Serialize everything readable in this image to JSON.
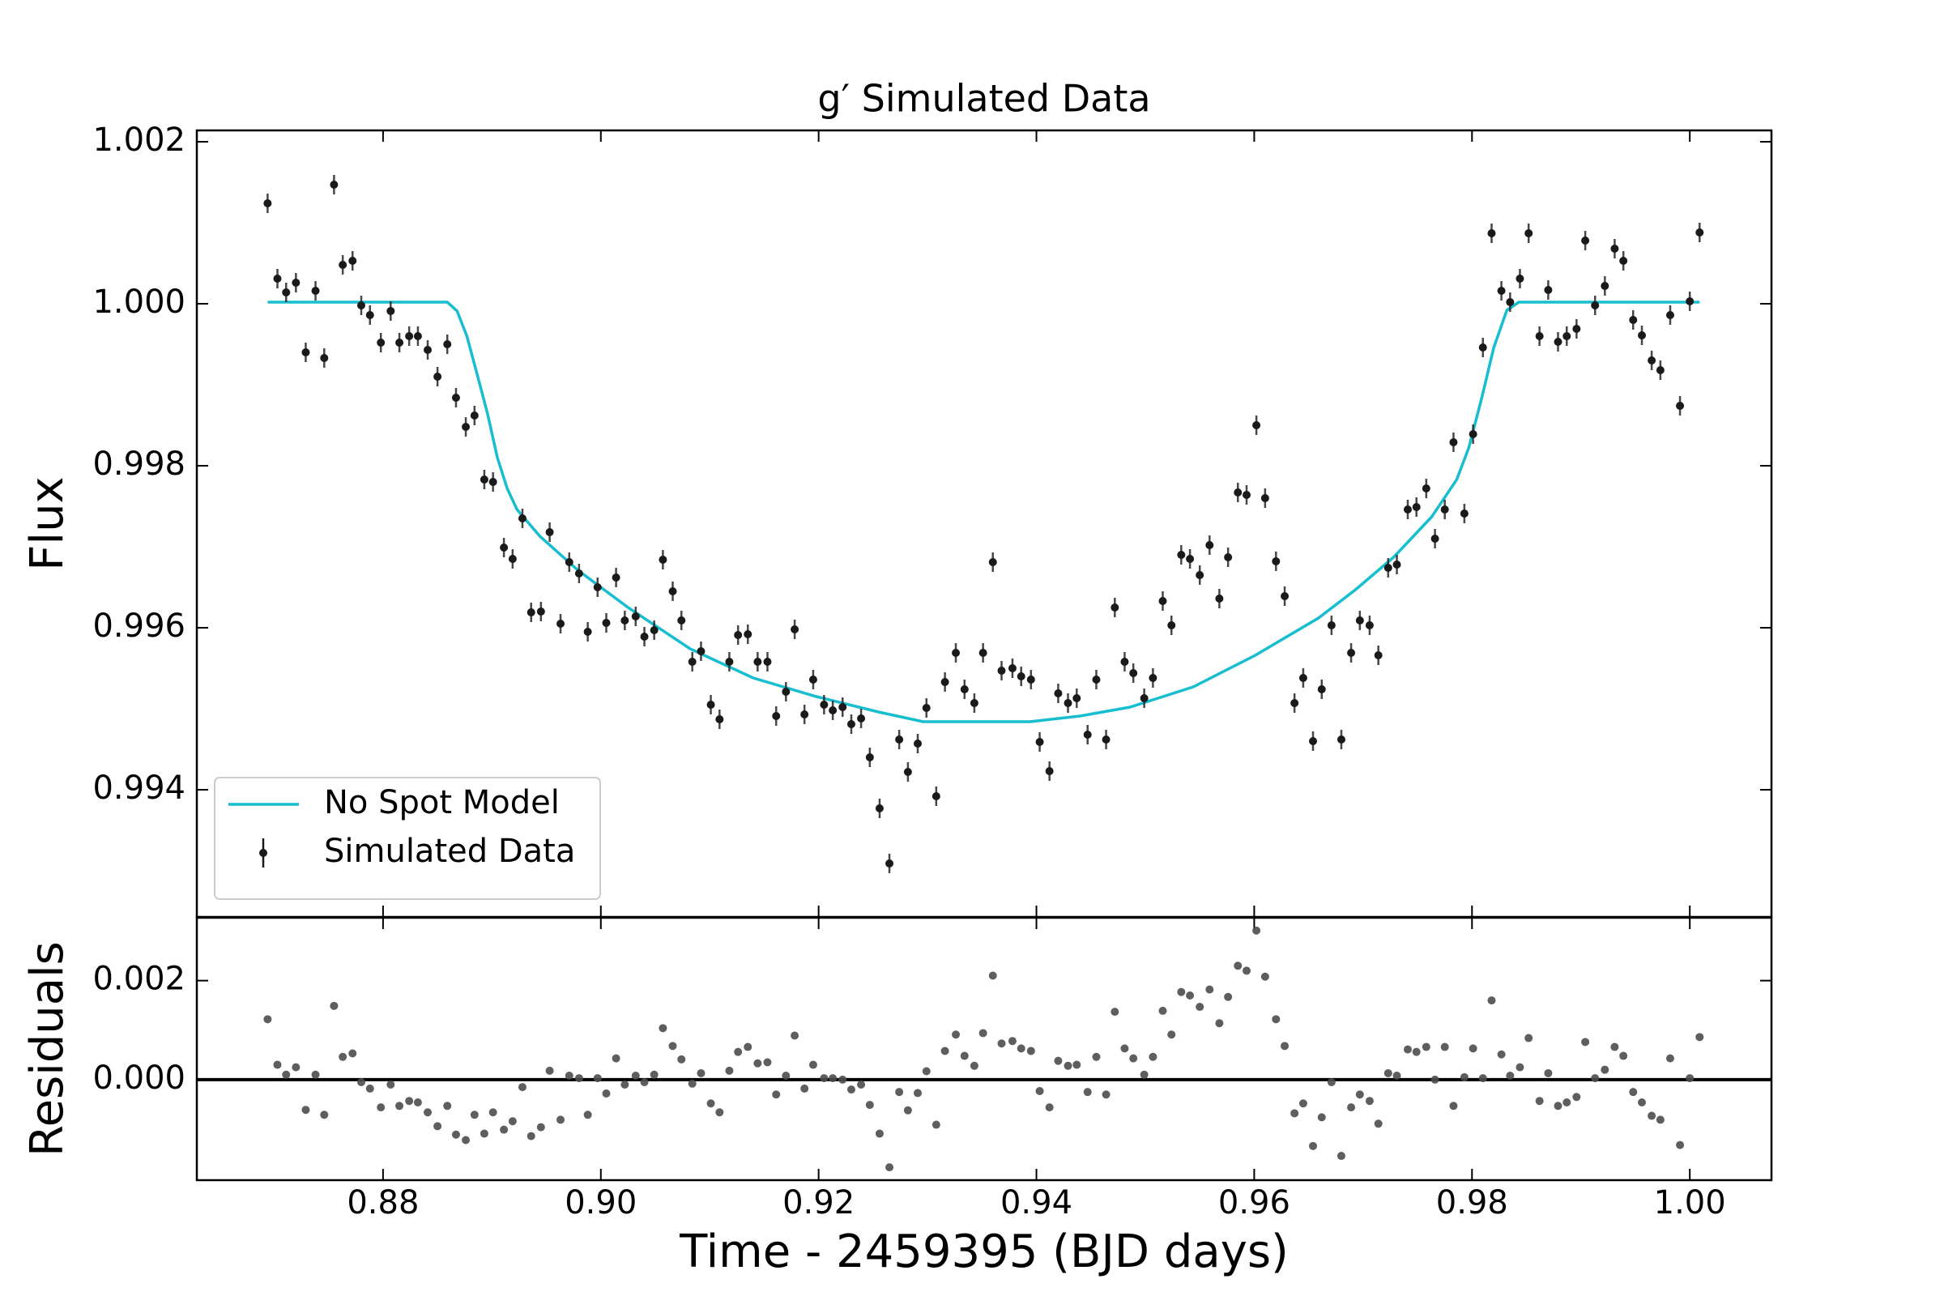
{
  "chart_data": [
    {
      "type": "errorbar",
      "title": "g′ Simulated Data",
      "ylabel": "Flux",
      "xlim": [
        0.8629,
        1.0075
      ],
      "ylim": [
        0.99243,
        1.00214
      ],
      "xticks": [
        0.88,
        {
          "value": 0.9,
          "label": "0.90"
        },
        0.92,
        0.94,
        0.96,
        0.98,
        {
          "value": 1,
          "label": "1.00"
        }
      ],
      "yticks": [
        0.994,
        0.996,
        0.998,
        {
          "value": 1,
          "label": "1.000"
        },
        1.002
      ],
      "legend": "lower left",
      "series": [
        {
          "name": "No Spot Model",
          "type": "line",
          "color": "#17becf",
          "x": [
            0.8694,
            0.8859,
            0.8868,
            0.8877,
            0.8886,
            0.8896,
            0.8905,
            0.8914,
            0.8923,
            0.8944,
            0.8979,
            0.9025,
            0.9082,
            0.914,
            0.9198,
            0.9255,
            0.9296,
            0.9394,
            0.944,
            0.9486,
            0.9544,
            0.9601,
            0.9659,
            0.9693,
            0.9728,
            0.9763,
            0.9786,
            0.9797,
            0.9809,
            0.982,
            0.9832,
            0.9843,
            1.0009
          ],
          "values": [
            1.00002,
            1.00002,
            0.99991,
            0.9996,
            0.99915,
            0.99864,
            0.9981,
            0.99772,
            0.99746,
            0.99713,
            0.99671,
            0.99625,
            0.99574,
            0.99538,
            0.99515,
            0.99496,
            0.99484,
            0.99484,
            0.99491,
            0.99502,
            0.99527,
            0.99566,
            0.99612,
            0.99647,
            0.99687,
            0.99737,
            0.99783,
            0.99822,
            0.99884,
            0.99946,
            0.99992,
            1.00002,
            1.00002
          ]
        },
        {
          "name": "Simulated Data",
          "type": "errorbar",
          "color": "#1a1a1a",
          "yerr": 0.00012,
          "x": [
            0.8694,
            0.8703,
            0.8711,
            0.872,
            0.8729,
            0.8738,
            0.8746,
            0.8755,
            0.8763,
            0.8772,
            0.878,
            0.8788,
            0.8798,
            0.8807,
            0.8815,
            0.8824,
            0.8832,
            0.8841,
            0.885,
            0.8859,
            0.8867,
            0.8876,
            0.8884,
            0.8893,
            0.8901,
            0.8911,
            0.8919,
            0.8928,
            0.8936,
            0.8945,
            0.8953,
            0.8963,
            0.8971,
            0.898,
            0.8988,
            0.8997,
            0.9005,
            0.9014,
            0.9022,
            0.9032,
            0.904,
            0.9049,
            0.9057,
            0.9066,
            0.9074,
            0.9084,
            0.9092,
            0.9101,
            0.9109,
            0.9118,
            0.9126,
            0.9135,
            0.9144,
            0.9153,
            0.9161,
            0.917,
            0.9178,
            0.9187,
            0.9195,
            0.9205,
            0.9213,
            0.9222,
            0.923,
            0.9239,
            0.9247,
            0.9256,
            0.9265,
            0.9274,
            0.9282,
            0.9291,
            0.9299,
            0.9308,
            0.9316,
            0.9326,
            0.9334,
            0.9343,
            0.9351,
            0.936,
            0.9368,
            0.9378,
            0.9386,
            0.9395,
            0.9403,
            0.9412,
            0.942,
            0.9429,
            0.9437,
            0.9447,
            0.9455,
            0.9464,
            0.9472,
            0.9481,
            0.9489,
            0.9499,
            0.9507,
            0.9516,
            0.9524,
            0.9533,
            0.9541,
            0.955,
            0.9559,
            0.9568,
            0.9576,
            0.9585,
            0.9593,
            0.9602,
            0.961,
            0.962,
            0.9628,
            0.9637,
            0.9645,
            0.9654,
            0.9662,
            0.9671,
            0.968,
            0.9689,
            0.9697,
            0.9706,
            0.9714,
            0.9723,
            0.9731,
            0.9741,
            0.9749,
            0.9758,
            0.9766,
            0.9775,
            0.9783,
            0.9793,
            0.9801,
            0.981,
            0.9818,
            0.9827,
            0.9835,
            0.9844,
            0.9852,
            0.9862,
            0.987,
            0.9879,
            0.9887,
            0.9896,
            0.9904,
            0.9913,
            0.9922,
            0.9931,
            0.9939,
            0.9948,
            0.9956,
            0.9965,
            0.9973,
            0.9982,
            0.9991,
            1.0,
            1.0009
          ],
          "values": [
            1.00124,
            1.00031,
            1.00014,
            1.00026,
            0.9994,
            1.00016,
            0.99933,
            1.00147,
            1.00048,
            1.00053,
            0.99998,
            0.99986,
            0.99952,
            0.99991,
            0.99952,
            0.9996,
            0.9996,
            0.99943,
            0.9991,
            0.9995,
            0.99884,
            0.99848,
            0.99862,
            0.99783,
            0.9978,
            0.99699,
            0.99685,
            0.99735,
            0.99619,
            0.9962,
            0.99718,
            0.99605,
            0.99681,
            0.99667,
            0.99595,
            0.9965,
            0.99606,
            0.99662,
            0.99609,
            0.99614,
            0.99589,
            0.99597,
            0.99684,
            0.99645,
            0.99609,
            0.99558,
            0.99571,
            0.99505,
            0.99487,
            0.99558,
            0.99591,
            0.99592,
            0.99558,
            0.99558,
            0.99491,
            0.99521,
            0.99598,
            0.99493,
            0.99536,
            0.99505,
            0.99498,
            0.99502,
            0.99481,
            0.99488,
            0.9944,
            0.99377,
            0.99309,
            0.99462,
            0.99422,
            0.99457,
            0.99501,
            0.99392,
            0.99533,
            0.99569,
            0.99524,
            0.99507,
            0.99569,
            0.99681,
            0.99547,
            0.9955,
            0.9954,
            0.99536,
            0.99459,
            0.99423,
            0.99519,
            0.99507,
            0.99513,
            0.99468,
            0.99536,
            0.99462,
            0.99625,
            0.99558,
            0.99544,
            0.99513,
            0.99538,
            0.99633,
            0.99603,
            0.9969,
            0.99685,
            0.99665,
            0.99702,
            0.99636,
            0.99687,
            0.99767,
            0.99764,
            0.9985,
            0.9976,
            0.99682,
            0.99639,
            0.99507,
            0.99538,
            0.9946,
            0.99524,
            0.99603,
            0.99462,
            0.99569,
            0.99609,
            0.99603,
            0.99566,
            0.99674,
            0.99678,
            0.99746,
            0.99749,
            0.99772,
            0.9971,
            0.99746,
            0.99829,
            0.99741,
            0.99839,
            0.99946,
            1.00087,
            1.00016,
            1.00002,
            1.00031,
            1.00087,
            0.9996,
            1.00017,
            0.99953,
            0.9996,
            0.99969,
            1.00078,
            0.99998,
            1.00022,
            1.00068,
            1.00053,
            0.9998,
            0.99961,
            0.9993,
            0.99918,
            0.99986,
            0.99874,
            1.00003,
            1.00088
          ]
        }
      ]
    },
    {
      "type": "scatter",
      "ylabel": "Residuals",
      "xlabel": "Time - 2459395 (BJD days)",
      "xlim": [
        0.8629,
        1.0075
      ],
      "ylim": [
        -0.00203,
        0.00327
      ],
      "xticks": [
        0.88,
        {
          "value": 0.9,
          "label": "0.90"
        },
        0.92,
        0.94,
        0.96,
        0.98,
        {
          "value": 1,
          "label": "1.00"
        }
      ],
      "yticks": [
        {
          "value": 0,
          "label": "0.000"
        },
        0.002
      ],
      "color": "#4d4d4d",
      "reference_line": {
        "value": 0,
        "color": "#000000"
      },
      "x": [
        0.8694,
        0.8703,
        0.8711,
        0.872,
        0.8729,
        0.8738,
        0.8746,
        0.8755,
        0.8763,
        0.8772,
        0.878,
        0.8788,
        0.8798,
        0.8807,
        0.8815,
        0.8824,
        0.8832,
        0.8841,
        0.885,
        0.8859,
        0.8867,
        0.8876,
        0.8884,
        0.8893,
        0.8901,
        0.8911,
        0.8919,
        0.8928,
        0.8936,
        0.8945,
        0.8953,
        0.8963,
        0.8971,
        0.898,
        0.8988,
        0.8997,
        0.9005,
        0.9014,
        0.9022,
        0.9032,
        0.904,
        0.9049,
        0.9057,
        0.9066,
        0.9074,
        0.9084,
        0.9092,
        0.9101,
        0.9109,
        0.9118,
        0.9126,
        0.9135,
        0.9144,
        0.9153,
        0.9161,
        0.917,
        0.9178,
        0.9187,
        0.9195,
        0.9205,
        0.9213,
        0.9222,
        0.923,
        0.9239,
        0.9247,
        0.9256,
        0.9265,
        0.9274,
        0.9282,
        0.9291,
        0.9299,
        0.9308,
        0.9316,
        0.9326,
        0.9334,
        0.9343,
        0.9351,
        0.936,
        0.9368,
        0.9378,
        0.9386,
        0.9395,
        0.9403,
        0.9412,
        0.942,
        0.9429,
        0.9437,
        0.9447,
        0.9455,
        0.9464,
        0.9472,
        0.9481,
        0.9489,
        0.9499,
        0.9507,
        0.9516,
        0.9524,
        0.9533,
        0.9541,
        0.955,
        0.9559,
        0.9568,
        0.9576,
        0.9585,
        0.9593,
        0.9602,
        0.961,
        0.962,
        0.9628,
        0.9637,
        0.9645,
        0.9654,
        0.9662,
        0.9671,
        0.968,
        0.9689,
        0.9697,
        0.9706,
        0.9714,
        0.9723,
        0.9731,
        0.9741,
        0.9749,
        0.9758,
        0.9766,
        0.9775,
        0.9783,
        0.9793,
        0.9801,
        0.981,
        0.9818,
        0.9827,
        0.9835,
        0.9844,
        0.9852,
        0.9862,
        0.987,
        0.9879,
        0.9887,
        0.9896,
        0.9904,
        0.9913,
        0.9922,
        0.9931,
        0.9939,
        0.9948,
        0.9956,
        0.9965,
        0.9973,
        0.9982,
        0.9991,
        1.0,
        1.0009
      ],
      "values": [
        0.00122,
        0.0003,
        0.0001,
        0.00025,
        -0.00061,
        0.0001,
        -0.00071,
        0.00149,
        0.00046,
        0.00053,
        -5e-05,
        -0.00018,
        -0.00056,
        -0.0001,
        -0.00053,
        -0.00043,
        -0.00046,
        -0.00066,
        -0.00094,
        -0.00053,
        -0.00111,
        -0.00122,
        -0.00071,
        -0.00109,
        -0.00066,
        -0.00101,
        -0.00084,
        -0.00015,
        -0.00114,
        -0.00096,
        0.00018,
        -0.00081,
        8e-05,
        3e-05,
        -0.00071,
        3e-05,
        -0.00028,
        0.00043,
        -0.0001,
        8e-05,
        -5e-05,
        0.0001,
        0.00104,
        0.00068,
        0.00041,
        -8e-05,
        0.00013,
        -0.00048,
        -0.00066,
        0.00018,
        0.00056,
        0.00066,
        0.00033,
        0.00035,
        -0.0003,
        8e-05,
        0.00089,
        -0.00018,
        0.0003,
        3e-05,
        3e-05,
        0,
        -0.0002,
        -0.0001,
        -0.00051,
        -0.00109,
        -0.00177,
        -0.00025,
        -0.00062,
        -0.00027,
        0.00017,
        -0.00091,
        0.00058,
        0.00091,
        0.00048,
        0.00028,
        0.00094,
        0.0021,
        0.00073,
        0.00078,
        0.00063,
        0.00058,
        -0.00023,
        -0.00056,
        0.00038,
        0.00028,
        0.0003,
        -0.00025,
        0.00046,
        -0.0003,
        0.00137,
        0.00063,
        0.00043,
        0.0001,
        0.00046,
        0.00139,
        0.00091,
        0.00177,
        0.0017,
        0.00147,
        0.00182,
        0.00114,
        0.00167,
        0.0023,
        0.0022,
        0.00301,
        0.00208,
        0.00122,
        0.00068,
        -0.00068,
        -0.00048,
        -0.00134,
        -0.00076,
        -5e-05,
        -0.00154,
        -0.00056,
        -0.0003,
        -0.00043,
        -0.00089,
        0.00013,
        8e-05,
        0.00061,
        0.00056,
        0.00066,
        0,
        0.00066,
        -0.00053,
        5e-05,
        0.00063,
        3e-05,
        0.0016,
        0.00051,
        8e-05,
        0.00025,
        0.00084,
        -0.00043,
        0.00013,
        -0.00053,
        -0.00046,
        -0.00035,
        0.00076,
        3e-05,
        0.0002,
        0.00066,
        0.00048,
        -0.00025,
        -0.00046,
        -0.00073,
        -0.00081,
        0.00043,
        -0.00132,
        3e-05,
        0.00086
      ]
    }
  ]
}
